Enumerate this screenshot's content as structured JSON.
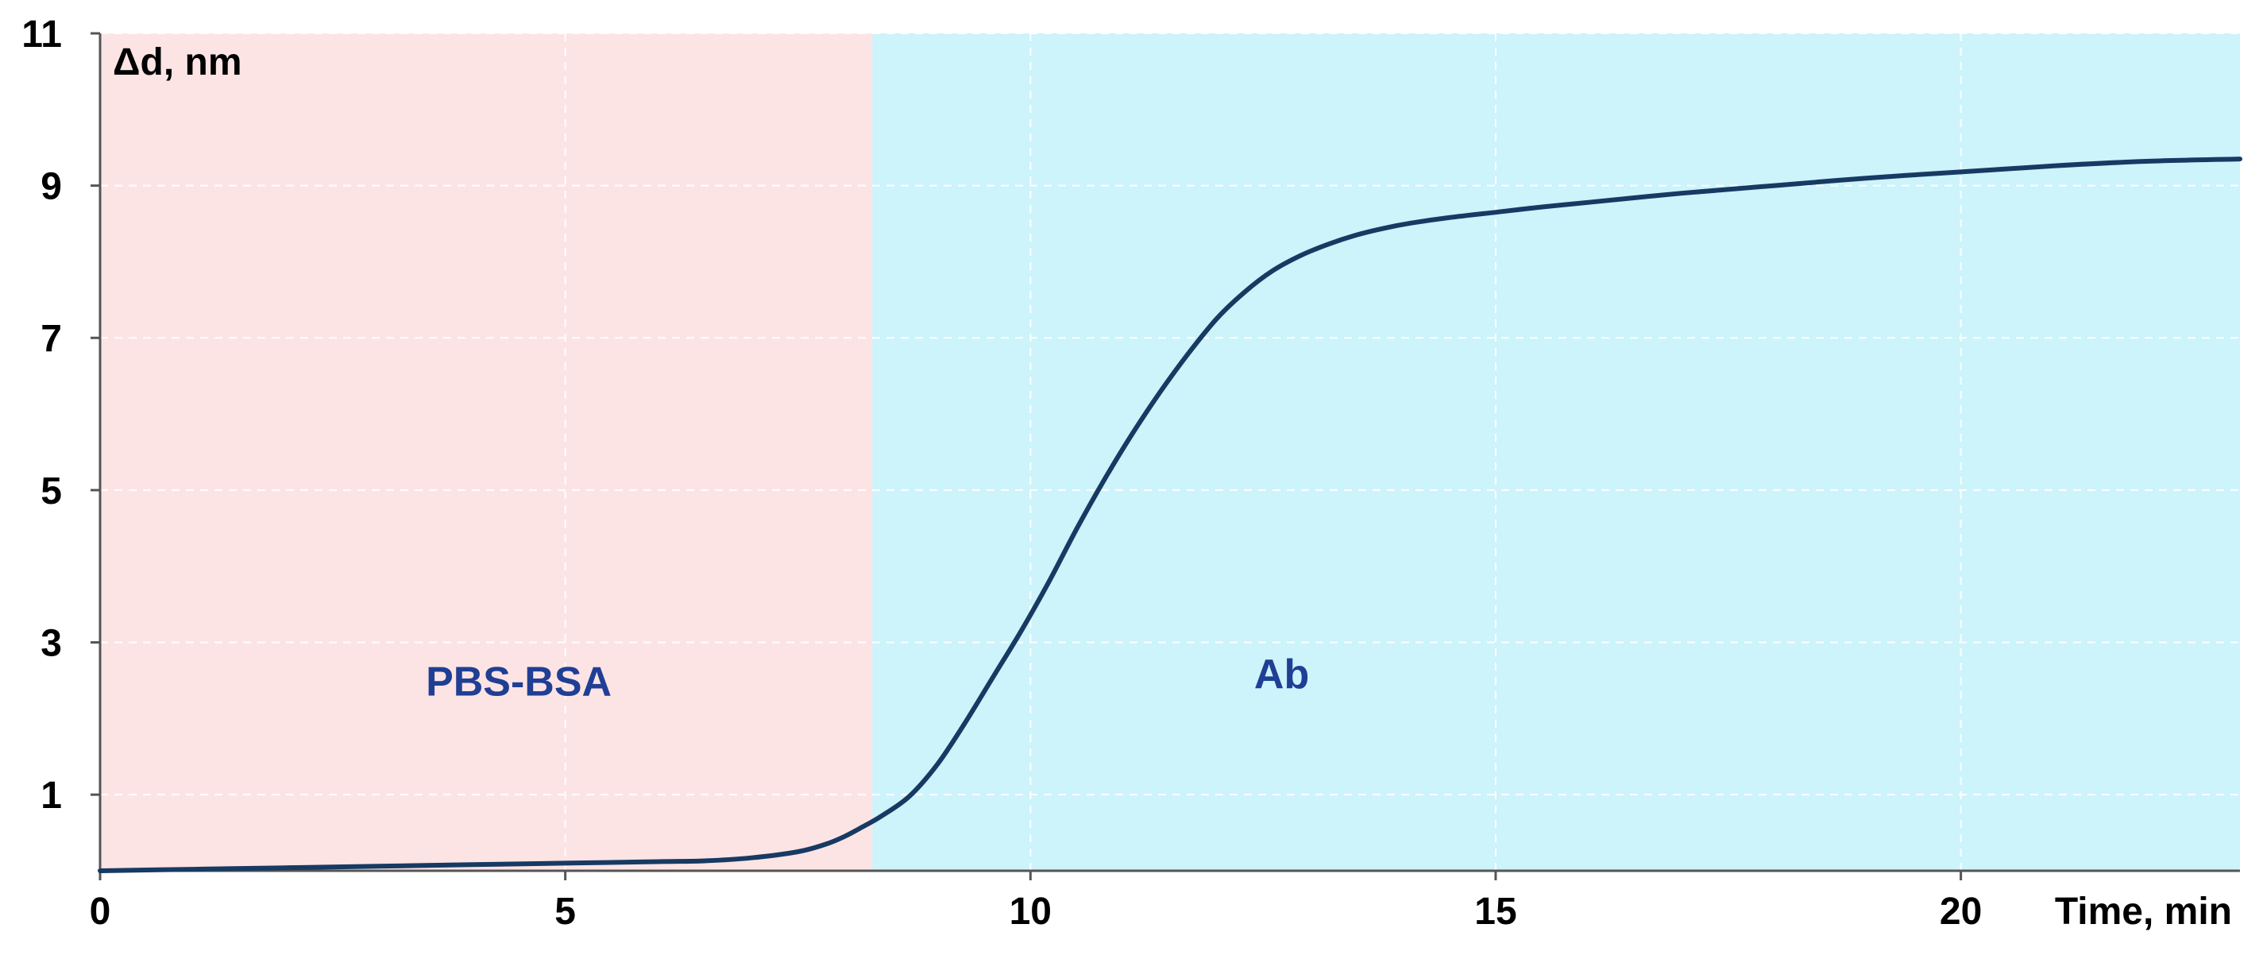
{
  "chart_data": {
    "type": "line",
    "title": "",
    "xlabel": "Time, min",
    "ylabel": "Δd, nm",
    "xlim": [
      0,
      23
    ],
    "ylim": [
      0,
      11
    ],
    "x_ticks": [
      0,
      5,
      10,
      15,
      20
    ],
    "y_ticks": [
      1,
      3,
      5,
      7,
      9,
      11
    ],
    "grid": true,
    "regions": [
      {
        "label": "PBS-BSA",
        "x_start": 0,
        "x_end": 8.3,
        "color": "#fde4e4"
      },
      {
        "label": "Ab",
        "x_start": 8.3,
        "x_end": 23,
        "color": "#cdf3fb"
      }
    ],
    "series": [
      {
        "color": "#173a63",
        "x": [
          0,
          1,
          2,
          3,
          4,
          5,
          6,
          6.5,
          7,
          7.5,
          7.8,
          8.0,
          8.2,
          8.4,
          8.7,
          9.0,
          9.3,
          9.6,
          9.9,
          10.2,
          10.5,
          10.8,
          11.1,
          11.4,
          11.7,
          12.0,
          12.3,
          12.6,
          12.9,
          13.2,
          13.5,
          13.8,
          14.1,
          14.5,
          15.0,
          15.5,
          16.0,
          17.0,
          18.0,
          19.0,
          20.0,
          21.0,
          22.0,
          23.0
        ],
        "y": [
          0.0,
          0.02,
          0.04,
          0.06,
          0.08,
          0.1,
          0.12,
          0.13,
          0.17,
          0.25,
          0.35,
          0.45,
          0.58,
          0.72,
          0.98,
          1.4,
          1.95,
          2.55,
          3.15,
          3.8,
          4.5,
          5.15,
          5.75,
          6.3,
          6.8,
          7.25,
          7.6,
          7.88,
          8.08,
          8.23,
          8.35,
          8.44,
          8.51,
          8.58,
          8.65,
          8.72,
          8.78,
          8.9,
          9.0,
          9.1,
          9.18,
          9.26,
          9.32,
          9.35
        ]
      }
    ]
  }
}
